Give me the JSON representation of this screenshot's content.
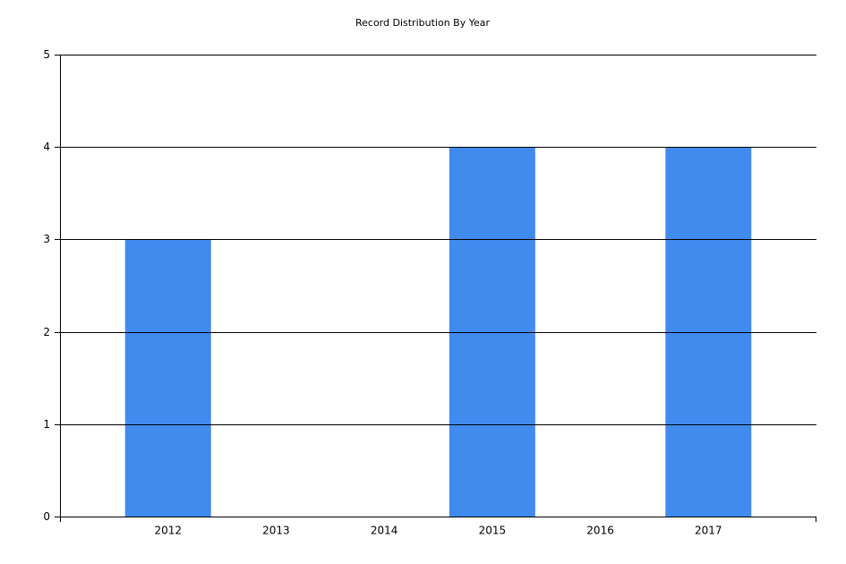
{
  "chart_data": {
    "type": "bar",
    "title": "Record Distribution By Year",
    "categories": [
      "2012",
      "2013",
      "2014",
      "2015",
      "2016",
      "2017"
    ],
    "values": [
      3,
      0,
      0,
      4,
      0,
      4
    ],
    "color": "#418bef",
    "ylim": [
      0,
      5
    ],
    "yticks": [
      0,
      1,
      2,
      3,
      4,
      5
    ],
    "grid": true
  }
}
